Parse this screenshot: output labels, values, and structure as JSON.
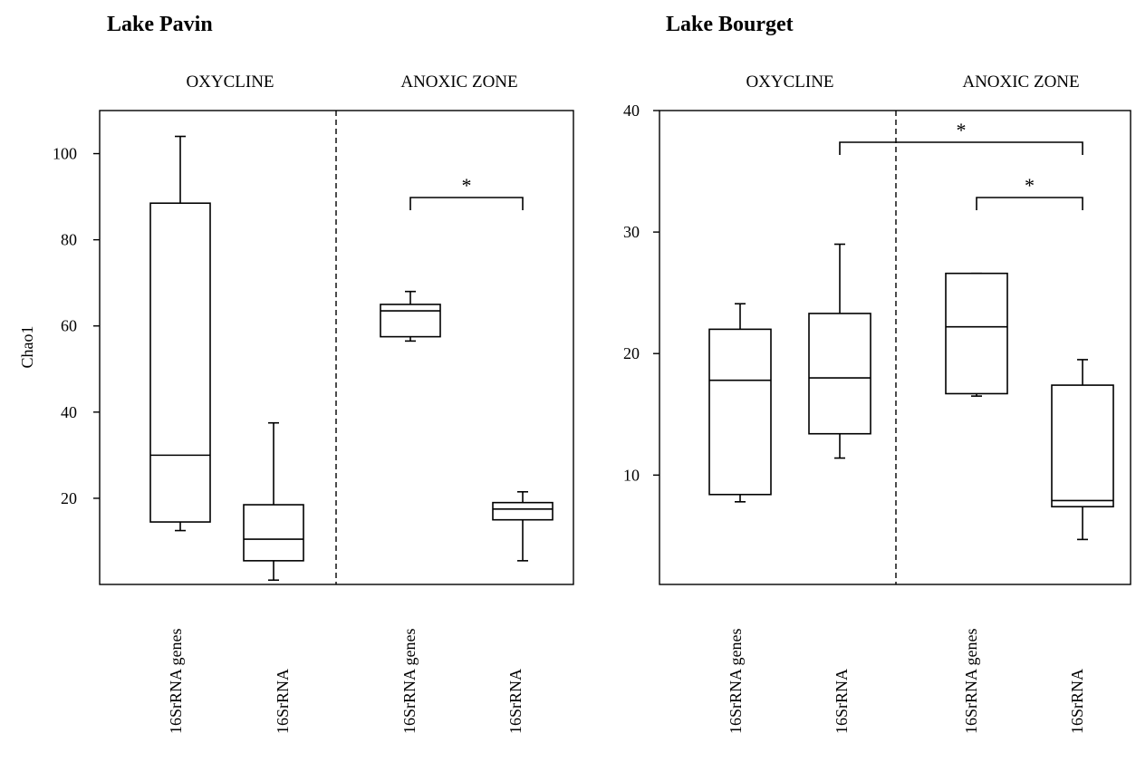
{
  "chart_data": [
    {
      "type": "box",
      "title": "Lake Pavin",
      "ylabel": "Chao1",
      "ylim": [
        0,
        110
      ],
      "yticks": [
        20,
        40,
        60,
        80,
        100
      ],
      "tick_labels": [
        "20",
        "40",
        "60",
        "80",
        "100"
      ],
      "zones": [
        "OXYCLINE",
        "ANOXIC ZONE"
      ],
      "categories": [
        "16SrRNA genes",
        "16SrRNA",
        "16SrRNA genes",
        "16SrRNA"
      ],
      "boxes": [
        {
          "zone": "OXYCLINE",
          "category": "16SrRNA genes",
          "min": 12.5,
          "q1": 14.5,
          "median": 30,
          "q3": 88.5,
          "max": 104
        },
        {
          "zone": "OXYCLINE",
          "category": "16SrRNA",
          "min": 1,
          "q1": 5.5,
          "median": 10.5,
          "q3": 18.5,
          "max": 37.5
        },
        {
          "zone": "ANOXIC ZONE",
          "category": "16SrRNA genes",
          "min": 56.5,
          "q1": 57.5,
          "median": 63.5,
          "q3": 65,
          "max": 68
        },
        {
          "zone": "ANOXIC ZONE",
          "category": "16SrRNA",
          "min": 5.5,
          "q1": 15,
          "median": 17.5,
          "q3": 19,
          "max": 21.5
        }
      ],
      "significance": [
        {
          "from": 2,
          "to": 3,
          "label": "*"
        }
      ]
    },
    {
      "type": "box",
      "title": "Lake Bourget",
      "ylabel": "",
      "ylim": [
        1,
        40
      ],
      "yticks": [
        10,
        20,
        30,
        40
      ],
      "tick_labels": [
        "10",
        "20",
        "30",
        "40"
      ],
      "zones": [
        "OXYCLINE",
        "ANOXIC ZONE"
      ],
      "categories": [
        "16SrRNA genes",
        "16SrRNA",
        "16SrRNA genes",
        "16SrRNA"
      ],
      "boxes": [
        {
          "zone": "OXYCLINE",
          "category": "16SrRNA genes",
          "min": 7.8,
          "q1": 8.4,
          "median": 17.8,
          "q3": 22,
          "max": 24.1
        },
        {
          "zone": "OXYCLINE",
          "category": "16SrRNA",
          "min": 11.4,
          "q1": 13.4,
          "median": 18,
          "q3": 23.3,
          "max": 29
        },
        {
          "zone": "ANOXIC ZONE",
          "category": "16SrRNA genes",
          "min": 16.5,
          "q1": 16.7,
          "median": 22.2,
          "q3": 26.6,
          "max": 26.6
        },
        {
          "zone": "ANOXIC ZONE",
          "category": "16SrRNA",
          "min": 4.7,
          "q1": 7.4,
          "median": 7.9,
          "q3": 17.4,
          "max": 19.5
        }
      ],
      "significance": [
        {
          "from": 1,
          "to": 3,
          "label": "*"
        },
        {
          "from": 2,
          "to": 3,
          "label": "*"
        }
      ]
    }
  ]
}
